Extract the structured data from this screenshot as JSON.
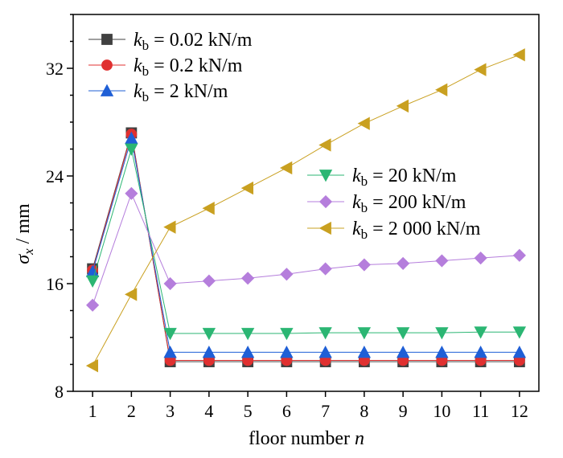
{
  "chart_data": {
    "type": "line",
    "title": "",
    "xlabel": {
      "text": "floor number ",
      "var": "n"
    },
    "ylabel": {
      "var": "σ",
      "sub": "x",
      "unit": " / mm"
    },
    "x": [
      1,
      2,
      3,
      4,
      5,
      6,
      7,
      8,
      9,
      10,
      11,
      12
    ],
    "xlim": [
      0.5,
      12.5
    ],
    "ylim": [
      8,
      36
    ],
    "xticks": [
      "1",
      "2",
      "3",
      "4",
      "5",
      "6",
      "7",
      "8",
      "9",
      "10",
      "11",
      "12"
    ],
    "yticks": [
      {
        "value": 8,
        "label": "8"
      },
      {
        "value": 16,
        "label": "16"
      },
      {
        "value": 24,
        "label": "24"
      },
      {
        "value": 32,
        "label": "32"
      }
    ],
    "grid": false,
    "series": [
      {
        "name_var": "k",
        "name_sub": "b",
        "name": " = 0.02 kN/m",
        "marker": "square",
        "color": "#404040",
        "values": [
          17.1,
          27.2,
          10.2,
          10.2,
          10.2,
          10.2,
          10.2,
          10.2,
          10.2,
          10.2,
          10.2,
          10.2
        ]
      },
      {
        "name_var": "k",
        "name_sub": "b",
        "name": " = 0.2 kN/m",
        "marker": "circle",
        "color": "#e03030",
        "values": [
          17.0,
          27.1,
          10.3,
          10.3,
          10.3,
          10.3,
          10.3,
          10.3,
          10.3,
          10.3,
          10.3,
          10.3
        ]
      },
      {
        "name_var": "k",
        "name_sub": "b",
        "name": " = 2 kN/m",
        "marker": "triangle-up",
        "color": "#1f5fd6",
        "values": [
          16.9,
          26.8,
          10.9,
          10.9,
          10.9,
          10.9,
          10.9,
          10.9,
          10.9,
          10.9,
          10.9,
          10.9
        ]
      },
      {
        "name_var": "k",
        "name_sub": "b",
        "name": " = 20  kN/m",
        "marker": "triangle-down",
        "color": "#2bb673",
        "values": [
          16.2,
          26.0,
          12.3,
          12.3,
          12.3,
          12.3,
          12.35,
          12.35,
          12.35,
          12.35,
          12.4,
          12.4
        ]
      },
      {
        "name_var": "k",
        "name_sub": "b",
        "name": " = 200  kN/m",
        "marker": "diamond",
        "color": "#b57edc",
        "values": [
          14.4,
          22.7,
          16.0,
          16.2,
          16.4,
          16.7,
          17.1,
          17.4,
          17.5,
          17.7,
          17.9,
          18.1
        ]
      },
      {
        "name_var": "k",
        "name_sub": "b",
        "name": " = 2 000  kN/m",
        "marker": "triangle-left",
        "color": "#c9a020",
        "values": [
          9.9,
          15.2,
          20.2,
          21.6,
          23.1,
          24.6,
          26.3,
          27.9,
          29.2,
          30.4,
          31.9,
          33.0
        ]
      }
    ],
    "legends": [
      {
        "position": "top-left",
        "series": [
          0,
          1,
          2
        ]
      },
      {
        "position": "middle-right",
        "series": [
          3,
          4,
          5
        ]
      }
    ]
  }
}
